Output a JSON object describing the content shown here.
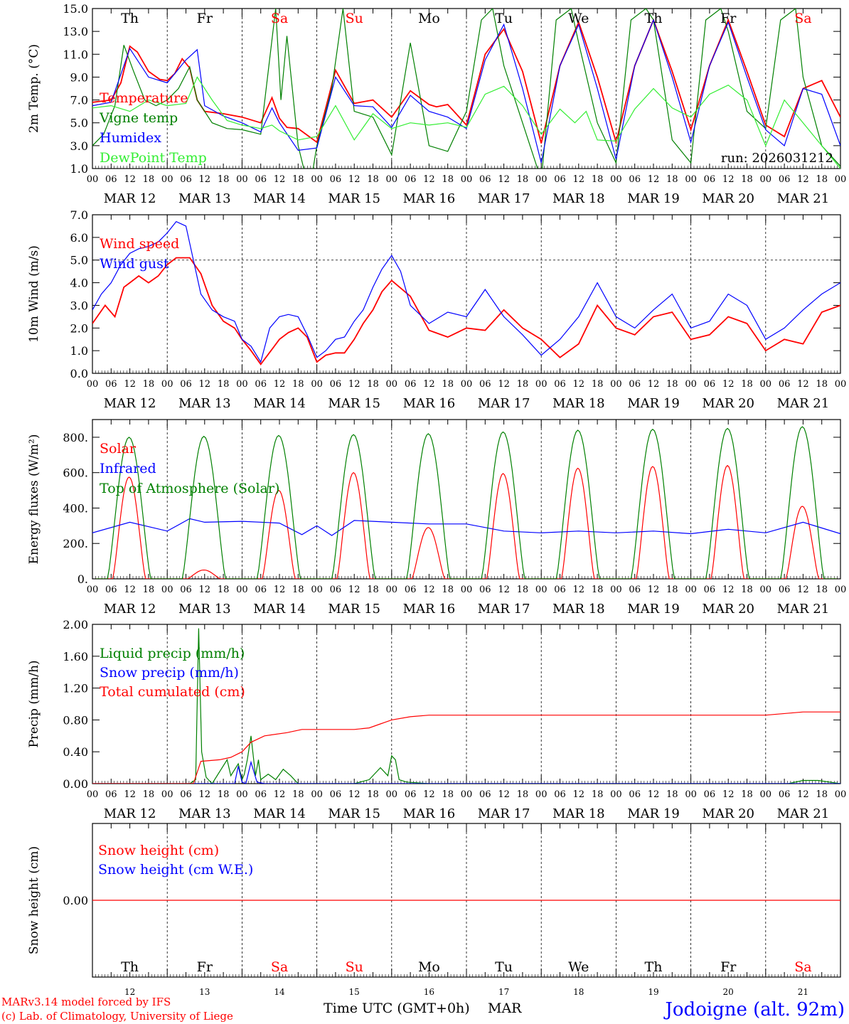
{
  "run_label": "run: 2026031212",
  "footer": {
    "model_line": "MARv3.14 model forced by IFS",
    "copyright_line": "(c) Lab. of Climatology, University of Liege",
    "xaxis_title": "Time UTC (GMT+0h)",
    "month": "MAR",
    "station": "Jodoigne (alt. 92m)"
  },
  "colors": {
    "red": "#ff0000",
    "green": "#008000",
    "blue": "#0000ff",
    "lightgreen": "#33ee33",
    "black": "#000000"
  },
  "hour_ticks": [
    "00",
    "06",
    "12",
    "18"
  ],
  "day_names": [
    "Th",
    "Fr",
    "Sa",
    "Su",
    "Mo",
    "Tu",
    "We",
    "Th",
    "Fr",
    "Sa"
  ],
  "weekend_days": [
    2,
    3,
    9
  ],
  "date_labels": [
    "MAR 12",
    "MAR 13",
    "MAR 14",
    "MAR 15",
    "MAR 16",
    "MAR 17",
    "MAR 18",
    "MAR 19",
    "MAR 20",
    "MAR 21"
  ],
  "day_numbers": [
    "12",
    "13",
    "14",
    "15",
    "16",
    "17",
    "18",
    "19",
    "20",
    "21"
  ],
  "chart_data": [
    {
      "type": "line",
      "id": "temp",
      "ylabel": "2m Temp. (°C)",
      "ylim": [
        1,
        15
      ],
      "ytick_values": [
        1,
        3,
        5,
        7,
        9,
        11,
        13,
        15
      ],
      "ytick_labels": [
        "1.0",
        "3.0",
        "5.0",
        "7.0",
        "9.0",
        "11.0",
        "13.0",
        "15.0"
      ],
      "x_unit": "days since MAR 12 00UTC",
      "xlim": [
        0,
        10
      ],
      "series": [
        {
          "name": "Temperature",
          "color": "#ff0000",
          "x": [
            0,
            0.25,
            0.38,
            0.5,
            0.6,
            0.75,
            0.9,
            1,
            1.1,
            1.2,
            1.3,
            1.4,
            1.5,
            1.75,
            2,
            2.25,
            2.4,
            2.5,
            2.6,
            2.75,
            3,
            3.25,
            3.5,
            3.75,
            4,
            4.25,
            4.5,
            4.6,
            4.75,
            5,
            5.25,
            5.5,
            5.75,
            6,
            6.25,
            6.5,
            6.75,
            7,
            7.25,
            7.5,
            7.75,
            8,
            8.25,
            8.5,
            8.75,
            9,
            9.25,
            9.5,
            9.75,
            10
          ],
          "y": [
            6.8,
            7,
            8.5,
            11.7,
            11.2,
            9.5,
            8.8,
            8.7,
            9.3,
            10.6,
            9.8,
            7,
            6,
            5.8,
            5.5,
            5,
            7.2,
            5.4,
            4.6,
            4.5,
            3.3,
            9.6,
            6.7,
            7,
            5.5,
            7.8,
            6.6,
            6.4,
            6.6,
            4.8,
            11,
            13.2,
            9.5,
            3.2,
            10,
            13.8,
            9,
            3.3,
            10,
            14,
            9.5,
            4.4,
            10,
            14,
            9.5,
            4.8,
            3.8,
            8,
            8.7,
            5.5
          ]
        },
        {
          "name": "Vigne temp",
          "color": "#008000",
          "x": [
            0,
            0.15,
            0.3,
            0.42,
            0.55,
            0.7,
            0.85,
            1,
            1.15,
            1.3,
            1.4,
            1.6,
            1.8,
            2,
            2.25,
            2.45,
            2.52,
            2.6,
            2.75,
            2.9,
            3,
            3.2,
            3.35,
            3.5,
            3.75,
            4,
            4.25,
            4.5,
            4.75,
            5,
            5.2,
            5.35,
            5.5,
            5.75,
            6,
            6.2,
            6.4,
            6.5,
            6.75,
            7,
            7.2,
            7.4,
            7.5,
            7.75,
            8,
            8.2,
            8.4,
            8.5,
            8.75,
            9,
            9.2,
            9.4,
            9.5,
            9.75,
            10
          ],
          "y": [
            3,
            4,
            6.5,
            11.8,
            9.5,
            7,
            6.5,
            7,
            8,
            9.9,
            7,
            5,
            4.5,
            4.4,
            4,
            15,
            7,
            12.6,
            3,
            -1,
            3,
            8,
            15,
            6,
            5.5,
            2.2,
            12,
            3,
            2.5,
            6,
            14,
            15,
            10,
            5,
            0,
            14,
            15,
            12,
            5,
            1.5,
            14,
            15,
            14,
            3.5,
            1.5,
            14,
            15,
            13,
            6,
            4.5,
            14,
            15,
            9,
            3,
            1.2
          ]
        },
        {
          "name": "Humidex",
          "color": "#0000ff",
          "x": [
            0,
            0.25,
            0.5,
            0.75,
            1,
            1.25,
            1.4,
            1.5,
            1.75,
            2,
            2.25,
            2.4,
            2.5,
            2.75,
            3,
            3.25,
            3.5,
            3.75,
            4,
            4.25,
            4.5,
            4.75,
            5,
            5.25,
            5.5,
            5.75,
            6,
            6.25,
            6.5,
            6.75,
            7,
            7.25,
            7.5,
            7.75,
            8,
            8.25,
            8.5,
            8.75,
            9,
            9.25,
            9.5,
            9.75,
            10
          ],
          "y": [
            6.5,
            6.8,
            11.5,
            9,
            8.5,
            10.5,
            11.4,
            6.5,
            5.6,
            5,
            4.2,
            6.3,
            5,
            2.6,
            2.8,
            9,
            6.5,
            6.4,
            4.6,
            7.4,
            6,
            5.5,
            4.5,
            10.5,
            13.6,
            8,
            1.5,
            10,
            13.6,
            8,
            1.8,
            10,
            14,
            9,
            3.3,
            10,
            13.8,
            9,
            4.4,
            3,
            8,
            7.5,
            3
          ]
        },
        {
          "name": "DewPoint Temp",
          "color": "#33ee33",
          "x": [
            0,
            0.25,
            0.5,
            0.75,
            1,
            1.25,
            1.4,
            1.6,
            1.8,
            2,
            2.25,
            2.4,
            2.5,
            2.75,
            3,
            3.25,
            3.5,
            3.75,
            4,
            4.25,
            4.5,
            4.75,
            5,
            5.25,
            5.5,
            5.75,
            6,
            6.25,
            6.45,
            6.6,
            6.75,
            7,
            7.25,
            7.5,
            7.75,
            8,
            8.25,
            8.5,
            8.75,
            9,
            9.25,
            9.5,
            9.75,
            10
          ],
          "y": [
            6.3,
            6.5,
            6,
            7,
            6.5,
            6.7,
            9,
            7,
            5.2,
            4.8,
            4.5,
            4.8,
            4.3,
            3.5,
            3.8,
            6.5,
            3.5,
            5.8,
            4.5,
            5,
            4.8,
            5,
            4.6,
            7.5,
            8.2,
            6.5,
            4,
            6.2,
            5,
            6,
            3.5,
            3.4,
            6.2,
            8,
            6.3,
            5.5,
            7.5,
            8.3,
            7,
            3,
            7,
            5,
            3,
            1
          ]
        }
      ]
    },
    {
      "type": "line",
      "id": "wind",
      "ylabel": "10m Wind (m/s)",
      "ylim": [
        0,
        7
      ],
      "ytick_values": [
        0,
        1,
        2,
        3,
        4,
        5,
        6,
        7
      ],
      "ytick_labels": [
        "0.0",
        "1.0",
        "2.0",
        "3.0",
        "4.0",
        "5.0",
        "6.0",
        "7.0"
      ],
      "reference_line": 5,
      "xlim": [
        0,
        10
      ],
      "series": [
        {
          "name": "Wind speed",
          "color": "#ff0000",
          "x": [
            0,
            0.17,
            0.3,
            0.42,
            0.5,
            0.62,
            0.75,
            0.88,
            1,
            1.12,
            1.3,
            1.45,
            1.6,
            1.75,
            1.9,
            2,
            2.12,
            2.25,
            2.5,
            2.62,
            2.75,
            2.87,
            3,
            3.12,
            3.25,
            3.37,
            3.5,
            3.62,
            3.75,
            3.87,
            4,
            4.25,
            4.5,
            4.75,
            5,
            5.25,
            5.5,
            5.75,
            6,
            6.25,
            6.5,
            6.75,
            7,
            7.25,
            7.5,
            7.75,
            8,
            8.25,
            8.5,
            8.75,
            9,
            9.25,
            9.5,
            9.75,
            10
          ],
          "y": [
            2.2,
            3,
            2.5,
            3.8,
            4,
            4.3,
            4,
            4.3,
            4.8,
            5.1,
            5.1,
            4.4,
            3,
            2.3,
            2,
            1.5,
            1,
            0.4,
            1.5,
            1.8,
            2,
            1.6,
            0.5,
            0.8,
            0.9,
            0.9,
            1.5,
            2.2,
            2.8,
            3.6,
            4.1,
            3.4,
            1.9,
            1.6,
            2,
            1.9,
            2.8,
            2,
            1.5,
            0.7,
            1.3,
            3,
            2,
            1.7,
            2.5,
            2.7,
            1.5,
            1.7,
            2.5,
            2.2,
            1,
            1.5,
            1.3,
            2.7,
            3
          ]
        },
        {
          "name": "Wind gust",
          "color": "#0000ff",
          "x": [
            0,
            0.12,
            0.25,
            0.38,
            0.5,
            0.62,
            0.75,
            0.88,
            1,
            1.12,
            1.25,
            1.35,
            1.45,
            1.6,
            1.75,
            1.9,
            2,
            2.12,
            2.25,
            2.37,
            2.5,
            2.62,
            2.75,
            2.87,
            3,
            3.12,
            3.25,
            3.37,
            3.5,
            3.62,
            3.75,
            3.87,
            4,
            4.12,
            4.25,
            4.5,
            4.75,
            5,
            5.25,
            5.5,
            5.75,
            6,
            6.25,
            6.5,
            6.75,
            7,
            7.25,
            7.5,
            7.75,
            8,
            8.25,
            8.5,
            8.75,
            9,
            9.25,
            9.5,
            9.75,
            10
          ],
          "y": [
            2.8,
            3.5,
            4,
            4.8,
            5.3,
            5.5,
            5.6,
            5.8,
            6.2,
            6.7,
            6.5,
            5,
            3.5,
            2.8,
            2.5,
            2.3,
            1.5,
            1.2,
            0.5,
            2,
            2.5,
            2.6,
            2.5,
            1.7,
            0.7,
            1,
            1.5,
            1.6,
            2.3,
            2.8,
            3.8,
            4.6,
            5.2,
            4.5,
            3,
            2.2,
            2.7,
            2.5,
            3.7,
            2.5,
            1.7,
            0.8,
            1.5,
            2.5,
            4,
            2.5,
            2,
            2.8,
            3.5,
            2,
            2.3,
            3.5,
            3,
            1.5,
            2,
            2.8,
            3.5,
            4
          ]
        }
      ]
    },
    {
      "type": "line",
      "id": "energy",
      "ylabel": "Energy fluxes (W/m²)",
      "ylim": [
        0,
        900
      ],
      "ytick_values": [
        0,
        200,
        400,
        600,
        800
      ],
      "ytick_labels": [
        "0.",
        "200.",
        "400.",
        "600.",
        "800."
      ],
      "xlim": [
        0,
        10
      ],
      "series": [
        {
          "name": "Solar",
          "color": "#ff0000",
          "day_peaks": [
            575,
            50,
            500,
            600,
            290,
            595,
            625,
            635,
            640,
            410
          ]
        },
        {
          "name": "Infrared",
          "color": "#0000ff",
          "x": [
            0,
            0.5,
            1,
            1.3,
            1.5,
            2,
            2.5,
            2.8,
            3,
            3.2,
            3.5,
            4,
            4.5,
            5,
            5.5,
            6,
            6.5,
            7,
            7.5,
            8,
            8.5,
            9,
            9.5,
            10
          ],
          "y": [
            260,
            320,
            270,
            340,
            320,
            325,
            315,
            250,
            300,
            245,
            330,
            320,
            310,
            310,
            270,
            260,
            270,
            260,
            270,
            255,
            280,
            260,
            320,
            255
          ]
        },
        {
          "name": "Top of Atmosphere (Solar)",
          "color": "#008000",
          "day_peaks": [
            800,
            805,
            810,
            815,
            820,
            830,
            840,
            845,
            850,
            860
          ]
        }
      ]
    },
    {
      "type": "line",
      "id": "precip",
      "ylabel": "Precip (mm/h)",
      "ylim": [
        0,
        2
      ],
      "ytick_values": [
        0,
        0.4,
        0.8,
        1.2,
        1.6,
        2.0
      ],
      "ytick_labels": [
        "0.00",
        "0.40",
        "0.80",
        "1.20",
        "1.60",
        "2.00"
      ],
      "xlim": [
        0,
        10
      ],
      "series": [
        {
          "name": "Liquid precip (mm/h)",
          "color": "#008000",
          "x": [
            0,
            1.3,
            1.38,
            1.42,
            1.46,
            1.52,
            1.6,
            1.8,
            1.85,
            1.95,
            2,
            2.03,
            2.07,
            2.12,
            2.18,
            2.22,
            2.25,
            2.35,
            2.45,
            2.55,
            2.65,
            2.75,
            3,
            3.5,
            3.7,
            3.85,
            3.95,
            4.0,
            4.05,
            4.1,
            4.2,
            4.5,
            9.3,
            9.5,
            9.7,
            10
          ],
          "y": [
            0,
            0,
            0.05,
            1.95,
            0.4,
            0.08,
            0,
            0.3,
            0.1,
            0.25,
            0.05,
            0.12,
            0.3,
            0.6,
            0.1,
            0.3,
            0.05,
            0.12,
            0.05,
            0.18,
            0.1,
            0,
            0,
            0,
            0.05,
            0.2,
            0.1,
            0.35,
            0.3,
            0.05,
            0.02,
            0,
            0,
            0.04,
            0.04,
            0
          ]
        },
        {
          "name": "Snow precip (mm/h)",
          "color": "#0000ff",
          "x": [
            0,
            1.9,
            1.95,
            2.0,
            2.05,
            2.12,
            2.2,
            2.3,
            10
          ],
          "y": [
            0,
            0,
            0.22,
            0.02,
            0,
            0.27,
            0.02,
            0,
            0
          ]
        },
        {
          "name": "Total cumulated (cm)",
          "color": "#ff0000",
          "x": [
            0,
            1.35,
            1.45,
            1.7,
            1.85,
            2,
            2.12,
            2.3,
            2.6,
            2.8,
            3,
            3.5,
            3.7,
            3.85,
            4,
            4.25,
            4.5,
            9,
            9.5,
            10
          ],
          "y": [
            0,
            0,
            0.28,
            0.3,
            0.33,
            0.4,
            0.52,
            0.6,
            0.64,
            0.68,
            0.68,
            0.68,
            0.7,
            0.75,
            0.8,
            0.84,
            0.86,
            0.86,
            0.9,
            0.9
          ]
        }
      ]
    },
    {
      "type": "line",
      "id": "snow",
      "ylabel": "Snow height (cm)",
      "ylim": [
        -1,
        1
      ],
      "ytick_values": [
        0
      ],
      "ytick_labels": [
        "0.00"
      ],
      "xlim": [
        0,
        10
      ],
      "series": [
        {
          "name": "Snow height (cm)",
          "color": "#ff0000",
          "x": [
            0,
            10
          ],
          "y": [
            0,
            0
          ]
        },
        {
          "name": "Snow height (cm W.E.)",
          "color": "#0000ff",
          "x": [],
          "y": []
        }
      ]
    }
  ]
}
